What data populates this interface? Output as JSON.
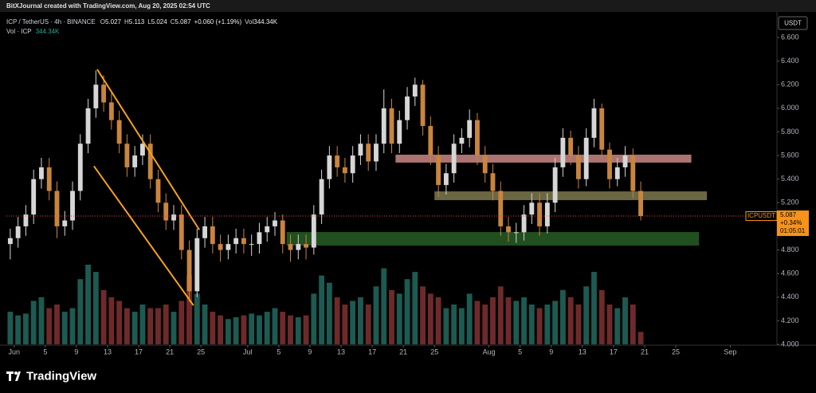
{
  "header": "BitXJournal created with TradingView.com, Aug 20, 2025 02:54 UTC",
  "chart_data": {
    "type": "candlestick",
    "legend": {
      "symbol": "ICP / TetherUS · 4h · BINANCE",
      "items": [
        {
          "label": "O",
          "value": 5.027
        },
        {
          "label": "H",
          "value": 5.113
        },
        {
          "label": "L",
          "value": 5.024
        },
        {
          "label": "C",
          "value": 5.087
        }
      ],
      "change": "+0.060 (+1.19%)",
      "volume_label": "Vol",
      "volume": "344.34K"
    },
    "volume_legend": {
      "label": "Vol · ICP",
      "value": "344.34K"
    },
    "currency": "USDT",
    "x": [
      "2025-05-31",
      "2025-06-01",
      "2025-06-02",
      "2025-06-03",
      "2025-06-04",
      "2025-06-05",
      "2025-06-06",
      "2025-06-07",
      "2025-06-08",
      "2025-06-09",
      "2025-06-10",
      "2025-06-11",
      "2025-06-12",
      "2025-06-13",
      "2025-06-14",
      "2025-06-15",
      "2025-06-16",
      "2025-06-17",
      "2025-06-18",
      "2025-06-19",
      "2025-06-20",
      "2025-06-21",
      "2025-06-22",
      "2025-06-23",
      "2025-06-24",
      "2025-06-25",
      "2025-06-26",
      "2025-06-27",
      "2025-06-28",
      "2025-06-29",
      "2025-06-30",
      "2025-07-01",
      "2025-07-02",
      "2025-07-03",
      "2025-07-04",
      "2025-07-05",
      "2025-07-06",
      "2025-07-07",
      "2025-07-08",
      "2025-07-09",
      "2025-07-10",
      "2025-07-11",
      "2025-07-12",
      "2025-07-13",
      "2025-07-14",
      "2025-07-15",
      "2025-07-16",
      "2025-07-17",
      "2025-07-18",
      "2025-07-19",
      "2025-07-20",
      "2025-07-21",
      "2025-07-22",
      "2025-07-23",
      "2025-07-24",
      "2025-07-25",
      "2025-07-26",
      "2025-07-27",
      "2025-07-28",
      "2025-07-29",
      "2025-07-30",
      "2025-07-31",
      "2025-08-01",
      "2025-08-02",
      "2025-08-03",
      "2025-08-04",
      "2025-08-05",
      "2025-08-06",
      "2025-08-07",
      "2025-08-08",
      "2025-08-09",
      "2025-08-10",
      "2025-08-11",
      "2025-08-12",
      "2025-08-13",
      "2025-08-14",
      "2025-08-15",
      "2025-08-16",
      "2025-08-17",
      "2025-08-18",
      "2025-08-19",
      "2025-08-20"
    ],
    "open": [
      4.85,
      4.9,
      5.0,
      5.1,
      5.4,
      5.5,
      5.3,
      5.0,
      5.05,
      5.3,
      5.7,
      6.0,
      6.2,
      6.05,
      5.9,
      5.7,
      5.5,
      5.6,
      5.7,
      5.4,
      5.2,
      5.05,
      5.1,
      4.8,
      4.45,
      4.9,
      5.0,
      4.85,
      4.8,
      4.85,
      4.9,
      4.85,
      4.85,
      4.95,
      5.0,
      5.05,
      4.85,
      4.8,
      4.85,
      4.82,
      5.1,
      5.4,
      5.6,
      5.5,
      5.45,
      5.6,
      5.7,
      5.55,
      5.7,
      6.0,
      5.7,
      5.9,
      6.1,
      6.2,
      5.85,
      5.6,
      5.35,
      5.45,
      5.7,
      5.75,
      5.9,
      5.6,
      5.45,
      5.3,
      5.0,
      4.95,
      4.95,
      5.1,
      5.2,
      5.0,
      5.2,
      5.5,
      5.75,
      5.6,
      5.4,
      5.75,
      6.0,
      5.65,
      5.4,
      5.5,
      5.6,
      5.3
    ],
    "high": [
      4.98,
      5.08,
      5.18,
      5.48,
      5.58,
      5.58,
      5.38,
      5.13,
      5.38,
      5.78,
      6.08,
      6.32,
      6.28,
      6.13,
      5.98,
      5.78,
      5.68,
      5.78,
      5.78,
      5.48,
      5.28,
      5.18,
      5.18,
      4.88,
      4.98,
      5.08,
      5.08,
      4.93,
      4.93,
      4.98,
      4.98,
      4.93,
      5.03,
      5.08,
      5.12,
      5.1,
      4.93,
      4.93,
      4.93,
      5.18,
      5.48,
      5.68,
      5.68,
      5.58,
      5.68,
      5.78,
      5.78,
      5.78,
      6.16,
      6.08,
      5.98,
      6.18,
      6.26,
      6.24,
      5.93,
      5.68,
      5.53,
      5.78,
      5.83,
      5.99,
      5.96,
      5.68,
      5.53,
      5.38,
      5.08,
      5.03,
      5.18,
      5.28,
      5.28,
      5.28,
      5.58,
      5.83,
      5.81,
      5.68,
      5.83,
      6.08,
      6.04,
      5.71,
      5.58,
      5.68,
      5.66,
      5.38
    ],
    "low": [
      4.72,
      4.82,
      4.92,
      5.02,
      5.32,
      5.22,
      4.9,
      4.92,
      4.97,
      5.22,
      5.62,
      5.92,
      5.97,
      5.82,
      5.62,
      5.42,
      5.42,
      5.52,
      5.32,
      5.12,
      4.97,
      4.97,
      4.72,
      4.36,
      4.4,
      4.82,
      4.77,
      4.7,
      4.72,
      4.77,
      4.77,
      4.75,
      4.77,
      4.87,
      4.92,
      4.77,
      4.7,
      4.72,
      4.72,
      4.76,
      5.02,
      5.32,
      5.42,
      5.37,
      5.37,
      5.52,
      5.47,
      5.47,
      5.62,
      5.62,
      5.62,
      5.82,
      6.02,
      5.77,
      5.52,
      5.25,
      5.27,
      5.37,
      5.62,
      5.67,
      5.52,
      5.37,
      5.22,
      4.92,
      4.87,
      4.86,
      4.88,
      5.02,
      4.92,
      4.94,
      5.12,
      5.42,
      5.52,
      5.32,
      5.34,
      5.67,
      5.57,
      5.32,
      5.34,
      5.42,
      5.24,
      5.05
    ],
    "close": [
      4.9,
      5.0,
      5.1,
      5.4,
      5.5,
      5.3,
      5.0,
      5.05,
      5.3,
      5.7,
      6.0,
      6.2,
      6.05,
      5.9,
      5.7,
      5.5,
      5.6,
      5.7,
      5.4,
      5.2,
      5.05,
      5.1,
      4.8,
      4.45,
      4.9,
      5.0,
      4.85,
      4.8,
      4.85,
      4.9,
      4.85,
      4.85,
      4.95,
      5.0,
      5.05,
      4.85,
      4.8,
      4.85,
      4.82,
      5.1,
      5.4,
      5.6,
      5.5,
      5.45,
      5.6,
      5.7,
      5.55,
      5.7,
      6.0,
      5.7,
      5.9,
      6.1,
      6.2,
      5.85,
      5.6,
      5.35,
      5.45,
      5.7,
      5.75,
      5.9,
      5.6,
      5.45,
      5.3,
      5.0,
      4.95,
      4.95,
      5.1,
      5.2,
      5.0,
      5.2,
      5.5,
      5.75,
      5.6,
      5.4,
      5.75,
      6.0,
      5.65,
      5.4,
      5.5,
      5.6,
      5.3,
      5.087
    ],
    "volume": [
      900,
      800,
      850,
      1200,
      1300,
      1000,
      1100,
      900,
      1000,
      1800,
      2200,
      2000,
      1500,
      1300,
      1200,
      1000,
      900,
      1100,
      1000,
      1000,
      1100,
      900,
      1200,
      1900,
      1400,
      1100,
      900,
      800,
      700,
      750,
      800,
      850,
      800,
      900,
      1000,
      900,
      800,
      750,
      800,
      1400,
      1900,
      1700,
      1300,
      1100,
      1200,
      1300,
      1100,
      1600,
      2100,
      1500,
      1400,
      1800,
      2000,
      1600,
      1400,
      1300,
      1000,
      1100,
      1000,
      1400,
      1200,
      1100,
      1300,
      1600,
      1300,
      1200,
      1300,
      1100,
      1000,
      1100,
      1200,
      1500,
      1300,
      1100,
      1600,
      2000,
      1500,
      1100,
      1000,
      1300,
      1100,
      344.34
    ],
    "up_color": "#d6d6d6",
    "down_color": "#c9843e",
    "volume_up_color": "#1d5a52",
    "volume_down_color": "#6e2a2a",
    "xlim": [
      "2025-05-31",
      "2025-09-07"
    ],
    "xticks": [
      {
        "value": "2025-06-01",
        "label": "Jun"
      },
      {
        "value": "2025-06-05",
        "label": "5"
      },
      {
        "value": "2025-06-09",
        "label": "9"
      },
      {
        "value": "2025-06-13",
        "label": "13"
      },
      {
        "value": "2025-06-17",
        "label": "17"
      },
      {
        "value": "2025-06-21",
        "label": "21"
      },
      {
        "value": "2025-06-25",
        "label": "25"
      },
      {
        "value": "2025-07-01",
        "label": "Jul"
      },
      {
        "value": "2025-07-05",
        "label": "5"
      },
      {
        "value": "2025-07-09",
        "label": "9"
      },
      {
        "value": "2025-07-13",
        "label": "13"
      },
      {
        "value": "2025-07-17",
        "label": "17"
      },
      {
        "value": "2025-07-21",
        "label": "21"
      },
      {
        "value": "2025-07-25",
        "label": "25"
      },
      {
        "value": "2025-08-01",
        "label": "Aug"
      },
      {
        "value": "2025-08-05",
        "label": "5"
      },
      {
        "value": "2025-08-09",
        "label": "9"
      },
      {
        "value": "2025-08-13",
        "label": "13"
      },
      {
        "value": "2025-08-17",
        "label": "17"
      },
      {
        "value": "2025-08-21",
        "label": "21"
      },
      {
        "value": "2025-08-25",
        "label": "25"
      },
      {
        "value": "2025-09-01",
        "label": "Sep"
      }
    ],
    "ylim": [
      4,
      6.8
    ],
    "yticks": [
      {
        "value": 4,
        "label": "4.000"
      },
      {
        "value": 4.2,
        "label": "4.200"
      },
      {
        "value": 4.4,
        "label": "4.400"
      },
      {
        "value": 4.6,
        "label": "4.600"
      },
      {
        "value": 4.8,
        "label": "4.800"
      },
      {
        "value": 5,
        "label": "5.000"
      },
      {
        "value": 5.2,
        "label": "5.200"
      },
      {
        "value": 5.4,
        "label": "5.400"
      },
      {
        "value": 5.6,
        "label": "5.600"
      },
      {
        "value": 5.8,
        "label": "5.800"
      },
      {
        "value": 6,
        "label": "6.000"
      },
      {
        "value": 6.2,
        "label": "6.200"
      },
      {
        "value": 6.4,
        "label": "6.400"
      },
      {
        "value": 6.6,
        "label": "6.600"
      }
    ],
    "price_label": {
      "symbol": "ICPUSDT",
      "price": "5.087",
      "change": "+0.34%",
      "countdown": "01:05:01",
      "color": "#f7931a"
    },
    "zones": [
      {
        "x": [
          "2025-07-20",
          "2025-08-27"
        ],
        "y": [
          5.54,
          5.607
        ],
        "color": "#e79a9a"
      },
      {
        "x": [
          "2025-07-25",
          "2025-08-29"
        ],
        "y": [
          5.222,
          5.296
        ],
        "color": "#8f8a5a"
      },
      {
        "x": [
          "2025-07-06",
          "2025-08-28"
        ],
        "y": [
          4.837,
          4.952
        ],
        "color": "#2e6a2a"
      }
    ],
    "trendlines": [
      {
        "x": [
          "2025-06-11T16:00Z",
          "2025-06-24T19:00Z"
        ],
        "y": [
          6.33,
          4.97
        ],
        "color": "#f7a21b"
      },
      {
        "x": [
          "2025-06-11T06:00Z",
          "2025-06-24T01:00Z"
        ],
        "y": [
          5.51,
          4.33
        ],
        "color": "#f7a21b"
      }
    ]
  },
  "footer": {
    "logo": "TradingView"
  }
}
